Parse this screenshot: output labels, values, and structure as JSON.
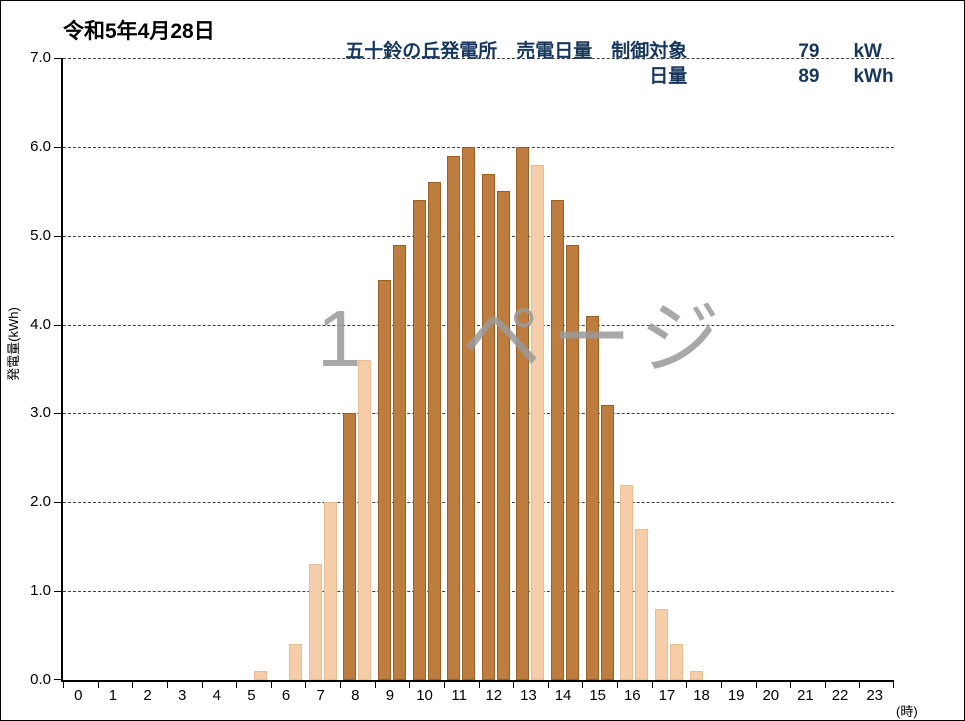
{
  "page": {
    "date_label": "令和5年4月28日",
    "watermark": "1　ページ"
  },
  "header": {
    "title": "五十鈴の丘発電所　売電日量　制御対象",
    "row1_value": "79",
    "row1_unit": "kW",
    "row2_label": "日量",
    "row2_value": "89",
    "row2_unit": "kWh",
    "text_color": "#17375D"
  },
  "chart_data": {
    "type": "bar",
    "title": "五十鈴の丘発電所 売電日量",
    "ylabel": "発電量(kWh)",
    "xlabel_suffix": "(時)",
    "ylim": [
      0,
      7
    ],
    "ytick_labels": [
      "0.0",
      "1.0",
      "2.0",
      "3.0",
      "4.0",
      "5.0",
      "6.0",
      "7.0"
    ],
    "xtick_labels": [
      "0",
      "1",
      "2",
      "3",
      "4",
      "5",
      "6",
      "7",
      "8",
      "9",
      "10",
      "11",
      "12",
      "13",
      "14",
      "15",
      "16",
      "17",
      "18",
      "19",
      "20",
      "21",
      "22",
      "23"
    ],
    "grid": "horizontal-dashed",
    "legend_position": "none",
    "bar_colors": {
      "controlled": "#BE7C3E",
      "controlled_border": "#9A6024",
      "uncontrolled": "#F5CDA8",
      "uncontrolled_border": "#E9BD93"
    },
    "bars": [
      {
        "hour": 5.5,
        "value": 0.1,
        "status": "uncontrolled"
      },
      {
        "hour": 6.5,
        "value": 0.4,
        "status": "uncontrolled"
      },
      {
        "hour": 7.0,
        "value": 1.3,
        "status": "uncontrolled"
      },
      {
        "hour": 7.5,
        "value": 2.0,
        "status": "uncontrolled"
      },
      {
        "hour": 8.0,
        "value": 3.0,
        "status": "controlled"
      },
      {
        "hour": 8.5,
        "value": 3.6,
        "status": "uncontrolled"
      },
      {
        "hour": 9.0,
        "value": 4.5,
        "status": "controlled"
      },
      {
        "hour": 9.5,
        "value": 4.9,
        "status": "controlled"
      },
      {
        "hour": 10.0,
        "value": 5.4,
        "status": "controlled"
      },
      {
        "hour": 10.5,
        "value": 5.6,
        "status": "controlled"
      },
      {
        "hour": 11.0,
        "value": 5.9,
        "status": "controlled"
      },
      {
        "hour": 11.5,
        "value": 6.0,
        "status": "controlled"
      },
      {
        "hour": 12.0,
        "value": 5.7,
        "status": "controlled"
      },
      {
        "hour": 12.5,
        "value": 5.5,
        "status": "controlled"
      },
      {
        "hour": 13.0,
        "value": 6.0,
        "status": "controlled"
      },
      {
        "hour": 13.5,
        "value": 5.8,
        "status": "uncontrolled"
      },
      {
        "hour": 14.0,
        "value": 5.4,
        "status": "controlled"
      },
      {
        "hour": 14.5,
        "value": 4.9,
        "status": "controlled"
      },
      {
        "hour": 15.0,
        "value": 4.1,
        "status": "controlled"
      },
      {
        "hour": 15.5,
        "value": 3.1,
        "status": "controlled"
      },
      {
        "hour": 16.0,
        "value": 2.2,
        "status": "uncontrolled"
      },
      {
        "hour": 16.5,
        "value": 1.7,
        "status": "uncontrolled"
      },
      {
        "hour": 17.0,
        "value": 0.8,
        "status": "uncontrolled"
      },
      {
        "hour": 17.5,
        "value": 0.4,
        "status": "uncontrolled"
      },
      {
        "hour": 18.0,
        "value": 0.1,
        "status": "uncontrolled"
      }
    ]
  }
}
